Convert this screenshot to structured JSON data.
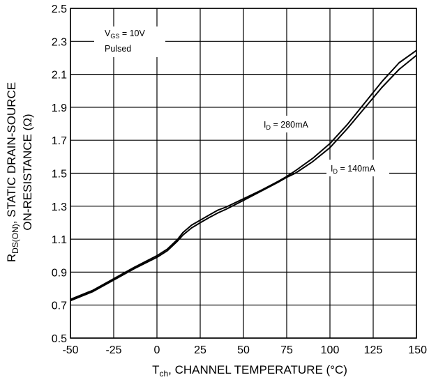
{
  "chart_data": {
    "type": "line",
    "xlabel_main": "T",
    "xlabel_sub": "ch",
    "xlabel_rest": ", CHANNEL TEMPERATURE (°C)",
    "ylabel_line1_main": "R",
    "ylabel_line1_sub": "DS(ON)",
    "ylabel_line1_rest": ", STATIC DRAIN-SOURCE",
    "ylabel_line2": "ON-RESISTANCE (Ω)",
    "xlim": [
      -50,
      150
    ],
    "ylim": [
      0.5,
      2.5
    ],
    "xticks": [
      "-50",
      "-25",
      "0",
      "25",
      "50",
      "75",
      "100",
      "125",
      "150"
    ],
    "yticks": [
      "0.5",
      "0.7",
      "0.9",
      "1.1",
      "1.3",
      "1.5",
      "1.7",
      "1.9",
      "2.1",
      "2.3",
      "2.5"
    ],
    "grid": true,
    "annotations": {
      "condition_vgs_main": "V",
      "condition_vgs_sub": "GS",
      "condition_vgs_rest": " = 10V",
      "condition_pulsed": "Pulsed",
      "id280_main": "I",
      "id280_sub": "D",
      "id280_rest": " = 280mA",
      "id140_main": "I",
      "id140_sub": "D",
      "id140_rest": " = 140mA"
    },
    "series": [
      {
        "name": "I_D = 280mA",
        "points": [
          [
            -50,
            0.735
          ],
          [
            -37,
            0.79
          ],
          [
            -25,
            0.86
          ],
          [
            -13,
            0.93
          ],
          [
            0,
            1.0
          ],
          [
            6,
            1.04
          ],
          [
            12,
            1.1
          ],
          [
            15,
            1.14
          ],
          [
            20,
            1.185
          ],
          [
            25,
            1.215
          ],
          [
            30,
            1.245
          ],
          [
            35,
            1.275
          ],
          [
            40,
            1.295
          ],
          [
            50,
            1.345
          ],
          [
            60,
            1.395
          ],
          [
            70,
            1.45
          ],
          [
            75,
            1.48
          ],
          [
            80,
            1.515
          ],
          [
            90,
            1.59
          ],
          [
            100,
            1.68
          ],
          [
            110,
            1.795
          ],
          [
            120,
            1.925
          ],
          [
            130,
            2.055
          ],
          [
            140,
            2.17
          ],
          [
            150,
            2.245
          ]
        ]
      },
      {
        "name": "I_D = 140mA",
        "points": [
          [
            -50,
            0.727
          ],
          [
            -37,
            0.782
          ],
          [
            -25,
            0.852
          ],
          [
            -13,
            0.922
          ],
          [
            0,
            0.99
          ],
          [
            6,
            1.03
          ],
          [
            12,
            1.09
          ],
          [
            15,
            1.125
          ],
          [
            20,
            1.168
          ],
          [
            25,
            1.2
          ],
          [
            30,
            1.23
          ],
          [
            35,
            1.258
          ],
          [
            40,
            1.282
          ],
          [
            50,
            1.335
          ],
          [
            60,
            1.39
          ],
          [
            70,
            1.445
          ],
          [
            75,
            1.475
          ],
          [
            80,
            1.5
          ],
          [
            90,
            1.57
          ],
          [
            100,
            1.655
          ],
          [
            110,
            1.77
          ],
          [
            120,
            1.895
          ],
          [
            130,
            2.02
          ],
          [
            140,
            2.13
          ],
          [
            150,
            2.215
          ]
        ]
      }
    ]
  }
}
